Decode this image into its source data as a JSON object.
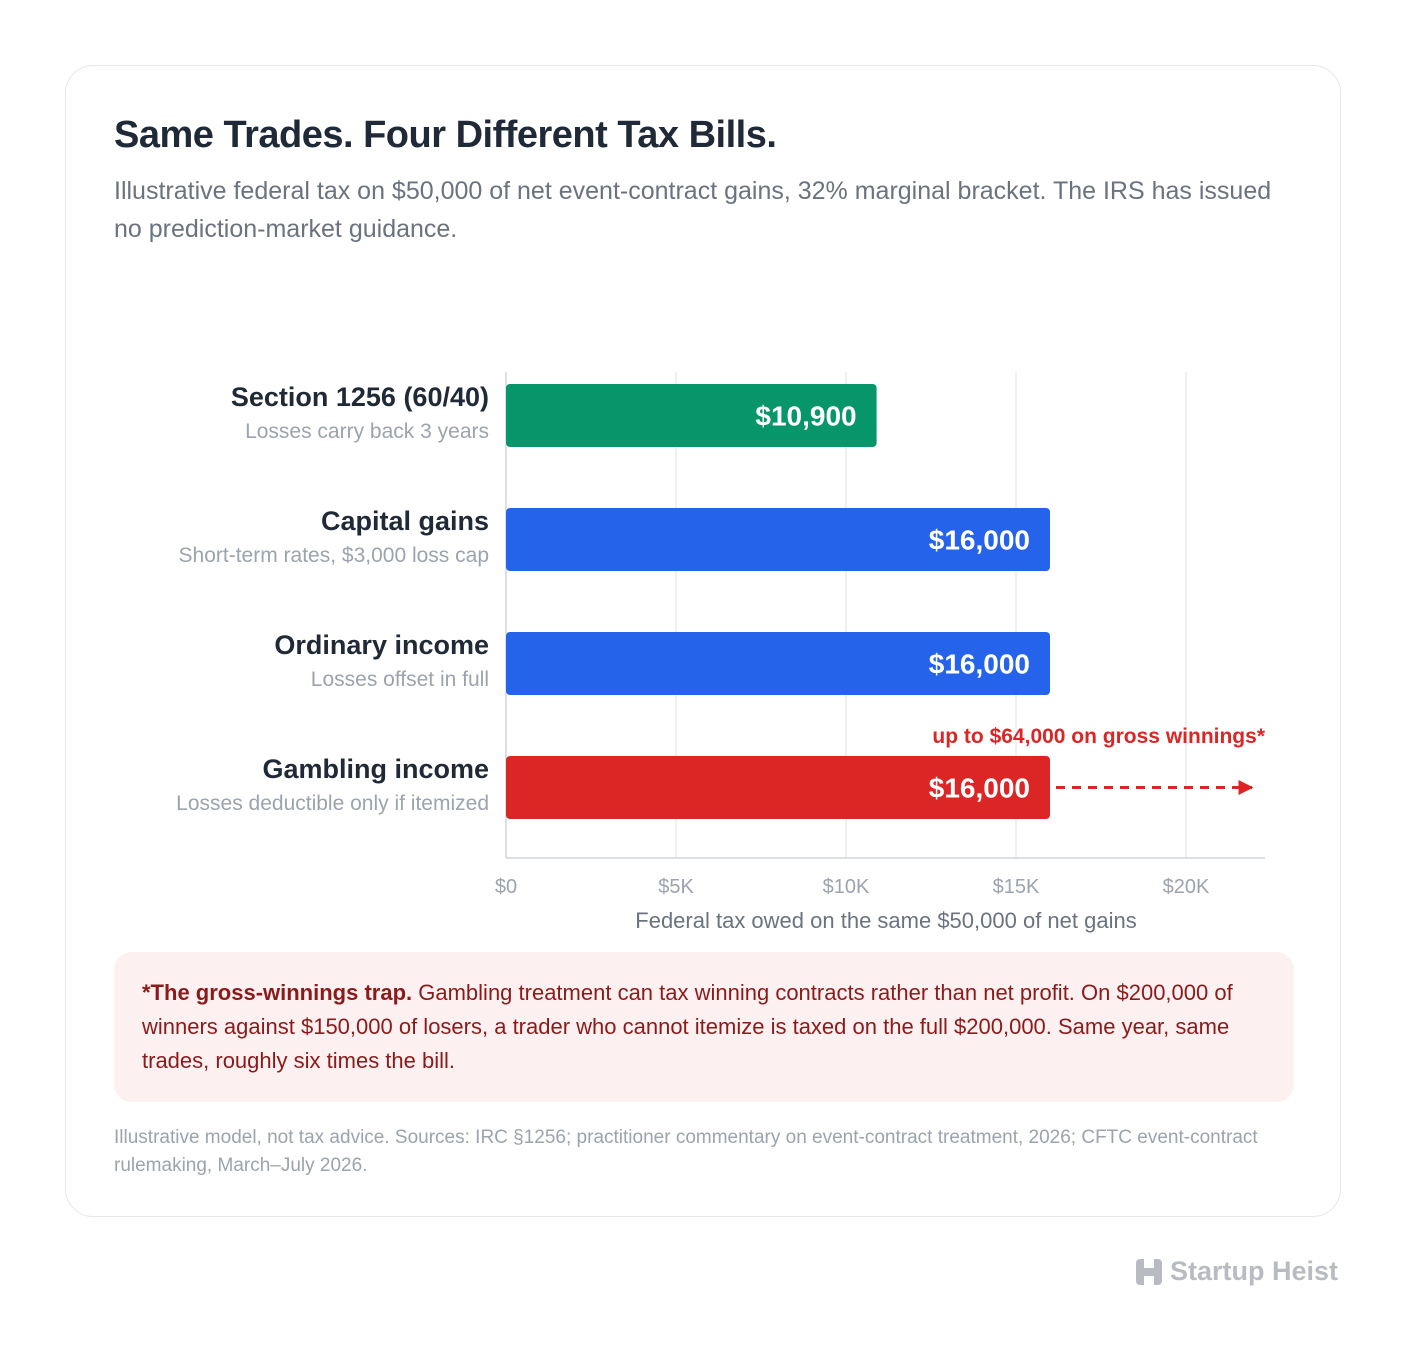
{
  "header": {
    "title": "Same Trades. Four Different Tax Bills.",
    "subtitle": "Illustrative federal tax on $50,000 of net event-contract gains, 32% marginal bracket. The IRS has issued no prediction-market guidance."
  },
  "chart_data": {
    "type": "bar",
    "orientation": "horizontal",
    "categories": [
      "Section 1256 (60/40)",
      "Capital gains",
      "Ordinary income",
      "Gambling income"
    ],
    "category_notes": [
      "Losses carry back 3 years",
      "Short-term rates, $3,000 loss cap",
      "Losses offset in full",
      "Losses deductible only if itemized"
    ],
    "values": [
      10900,
      16000,
      16000,
      16000
    ],
    "value_labels": [
      "$10,900",
      "$16,000",
      "$16,000",
      "$16,000"
    ],
    "colors": [
      "#079669",
      "#2563eb",
      "#2563eb",
      "#dc2626"
    ],
    "xlabel": "Federal tax owed on the same $50,000 of net gains",
    "ylabel": "",
    "xlim": [
      0,
      22000
    ],
    "xticks": [
      0,
      5000,
      10000,
      15000,
      20000
    ],
    "xtick_labels": [
      "$0",
      "$5K",
      "$10K",
      "$15K",
      "$20K"
    ],
    "grid": true,
    "annotation": {
      "text": "up to $64,000 on gross winnings*",
      "category": "Gambling income",
      "arrow": "dashed, extends beyond axis",
      "color": "#dc2626"
    }
  },
  "footnote": {
    "lead": "*The gross-winnings trap.",
    "body": " Gambling treatment can tax winning contracts rather than net profit. On $200,000 of winners against $150,000 of losers, a trader who cannot itemize is taxed on the full $200,000. Same year, same trades, roughly six times the bill."
  },
  "sources": "Illustrative model, not tax advice. Sources: IRC §1256; practitioner commentary on event-contract treatment, 2026; CFTC event-contract rulemaking, March–July 2026.",
  "brand": {
    "name": "Startup Heist",
    "icon": "startup-heist-logo-icon"
  }
}
